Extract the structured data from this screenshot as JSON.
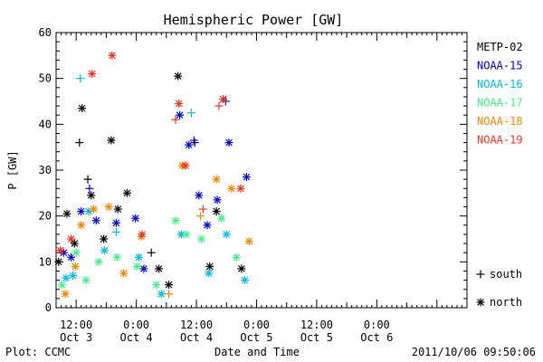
{
  "chart_data": {
    "type": "scatter",
    "title": "Hemispheric Power [GW]",
    "xlabel": "Date and Time",
    "ylabel": "P [GW]",
    "ylim": [
      0,
      60
    ],
    "yticks": [
      0,
      10,
      20,
      30,
      40,
      50,
      60
    ],
    "xlim": [
      "2011-10-03T08:00",
      "2011-10-06T18:00"
    ],
    "xticks": [
      {
        "at": "2011-10-03T12:00",
        "time": "12:00",
        "date": "Oct 3"
      },
      {
        "at": "2011-10-04T00:00",
        "time": "0:00",
        "date": "Oct 4"
      },
      {
        "at": "2011-10-04T12:00",
        "time": "12:00",
        "date": "Oct 4"
      },
      {
        "at": "2011-10-05T00:00",
        "time": "0:00",
        "date": "Oct 5"
      },
      {
        "at": "2011-10-05T12:00",
        "time": "12:00",
        "date": "Oct 5"
      },
      {
        "at": "2011-10-06T00:00",
        "time": "0:00",
        "date": "Oct 6"
      }
    ],
    "grid": false,
    "legend_position": "right",
    "hemisphere_legend": [
      {
        "marker": "+",
        "label": "south"
      },
      {
        "marker": "*",
        "label": "north"
      }
    ],
    "series": [
      {
        "name": "METP-02",
        "color": "#000000",
        "points": [
          {
            "x": "2011-10-03T08:30",
            "y": 10,
            "m": "*"
          },
          {
            "x": "2011-10-03T10:10",
            "y": 20.5,
            "m": "*"
          },
          {
            "x": "2011-10-03T11:40",
            "y": 14,
            "m": "*"
          },
          {
            "x": "2011-10-03T12:40",
            "y": 36,
            "m": "+"
          },
          {
            "x": "2011-10-03T13:10",
            "y": 43.5,
            "m": "*"
          },
          {
            "x": "2011-10-03T14:20",
            "y": 28,
            "m": "+"
          },
          {
            "x": "2011-10-03T15:00",
            "y": 24.5,
            "m": "*"
          },
          {
            "x": "2011-10-03T17:30",
            "y": 15,
            "m": "*"
          },
          {
            "x": "2011-10-03T19:00",
            "y": 36.5,
            "m": "*"
          },
          {
            "x": "2011-10-03T20:20",
            "y": 21.5,
            "m": "*"
          },
          {
            "x": "2011-10-03T22:10",
            "y": 25,
            "m": "*"
          },
          {
            "x": "2011-10-04T03:00",
            "y": 12,
            "m": "+"
          },
          {
            "x": "2011-10-04T04:30",
            "y": 8.5,
            "m": "*"
          },
          {
            "x": "2011-10-04T06:30",
            "y": 5,
            "m": "*"
          },
          {
            "x": "2011-10-04T08:20",
            "y": 50.5,
            "m": "*"
          },
          {
            "x": "2011-10-04T11:40",
            "y": 36,
            "m": "+"
          },
          {
            "x": "2011-10-04T14:40",
            "y": 9,
            "m": "*"
          },
          {
            "x": "2011-10-04T16:00",
            "y": 21,
            "m": "*"
          },
          {
            "x": "2011-10-04T21:00",
            "y": 8.5,
            "m": "*"
          }
        ]
      },
      {
        "name": "NOAA-15",
        "color": "#0000cc",
        "points": [
          {
            "x": "2011-10-03T09:30",
            "y": 12,
            "m": "*"
          },
          {
            "x": "2011-10-03T11:00",
            "y": 11,
            "m": "*"
          },
          {
            "x": "2011-10-03T13:00",
            "y": 21,
            "m": "*"
          },
          {
            "x": "2011-10-03T14:40",
            "y": 26,
            "m": "+"
          },
          {
            "x": "2011-10-03T16:00",
            "y": 19,
            "m": "*"
          },
          {
            "x": "2011-10-03T20:00",
            "y": 18.5,
            "m": "*"
          },
          {
            "x": "2011-10-03T23:50",
            "y": 19.5,
            "m": "*"
          },
          {
            "x": "2011-10-04T01:30",
            "y": 8.5,
            "m": "*"
          },
          {
            "x": "2011-10-04T08:40",
            "y": 42,
            "m": "*"
          },
          {
            "x": "2011-10-04T10:30",
            "y": 35.5,
            "m": "*"
          },
          {
            "x": "2011-10-04T11:30",
            "y": 36.5,
            "m": "+"
          },
          {
            "x": "2011-10-04T12:30",
            "y": 24.5,
            "m": "*"
          },
          {
            "x": "2011-10-04T14:10",
            "y": 18,
            "m": "*"
          },
          {
            "x": "2011-10-04T16:10",
            "y": 23.5,
            "m": "*"
          },
          {
            "x": "2011-10-04T17:50",
            "y": 45,
            "m": "+"
          },
          {
            "x": "2011-10-04T18:30",
            "y": 36,
            "m": "*"
          },
          {
            "x": "2011-10-04T22:00",
            "y": 28.5,
            "m": "*"
          }
        ]
      },
      {
        "name": "NOAA-16",
        "color": "#00bbdd",
        "points": [
          {
            "x": "2011-10-03T10:00",
            "y": 6.5,
            "m": "*"
          },
          {
            "x": "2011-10-03T11:20",
            "y": 7,
            "m": "*"
          },
          {
            "x": "2011-10-03T12:50",
            "y": 50,
            "m": "+"
          },
          {
            "x": "2011-10-03T14:30",
            "y": 21,
            "m": "*"
          },
          {
            "x": "2011-10-03T17:40",
            "y": 12.5,
            "m": "*"
          },
          {
            "x": "2011-10-03T20:00",
            "y": 16.5,
            "m": "+"
          },
          {
            "x": "2011-10-04T00:30",
            "y": 11,
            "m": "*"
          },
          {
            "x": "2011-10-04T05:00",
            "y": 3,
            "m": "*"
          },
          {
            "x": "2011-10-04T09:00",
            "y": 16,
            "m": "*"
          },
          {
            "x": "2011-10-04T11:00",
            "y": 42.5,
            "m": "+"
          },
          {
            "x": "2011-10-04T14:30",
            "y": 7.5,
            "m": "*"
          },
          {
            "x": "2011-10-04T18:00",
            "y": 16,
            "m": "*"
          },
          {
            "x": "2011-10-04T21:40",
            "y": 6,
            "m": "*"
          }
        ]
      },
      {
        "name": "NOAA-17",
        "color": "#44ee88",
        "points": [
          {
            "x": "2011-10-03T09:10",
            "y": 5,
            "m": "*"
          },
          {
            "x": "2011-10-03T12:00",
            "y": 12,
            "m": "*"
          },
          {
            "x": "2011-10-03T14:00",
            "y": 6,
            "m": "*"
          },
          {
            "x": "2011-10-03T16:30",
            "y": 10,
            "m": "*"
          },
          {
            "x": "2011-10-03T20:10",
            "y": 11,
            "m": "*"
          },
          {
            "x": "2011-10-04T00:10",
            "y": 9,
            "m": "*"
          },
          {
            "x": "2011-10-04T04:00",
            "y": 5,
            "m": "*"
          },
          {
            "x": "2011-10-04T07:50",
            "y": 19,
            "m": "*"
          },
          {
            "x": "2011-10-04T10:00",
            "y": 16,
            "m": "*"
          },
          {
            "x": "2011-10-04T13:00",
            "y": 15,
            "m": "*"
          },
          {
            "x": "2011-10-04T17:00",
            "y": 19.5,
            "m": "*"
          },
          {
            "x": "2011-10-04T20:00",
            "y": 11,
            "m": "*"
          }
        ]
      },
      {
        "name": "NOAA-18",
        "color": "#ee8800",
        "points": [
          {
            "x": "2011-10-03T09:50",
            "y": 3,
            "m": "*"
          },
          {
            "x": "2011-10-03T11:50",
            "y": 9,
            "m": "*"
          },
          {
            "x": "2011-10-03T13:00",
            "y": 18,
            "m": "*"
          },
          {
            "x": "2011-10-03T15:30",
            "y": 21.5,
            "m": "*"
          },
          {
            "x": "2011-10-03T18:30",
            "y": 22,
            "m": "*"
          },
          {
            "x": "2011-10-03T21:30",
            "y": 7.5,
            "m": "*"
          },
          {
            "x": "2011-10-04T01:00",
            "y": 15.5,
            "m": "*"
          },
          {
            "x": "2011-10-04T06:30",
            "y": 3,
            "m": "+"
          },
          {
            "x": "2011-10-04T09:10",
            "y": 31,
            "m": "*"
          },
          {
            "x": "2011-10-04T12:50",
            "y": 20,
            "m": "+"
          },
          {
            "x": "2011-10-04T16:00",
            "y": 28,
            "m": "*"
          },
          {
            "x": "2011-10-04T19:00",
            "y": 26,
            "m": "*"
          },
          {
            "x": "2011-10-04T22:30",
            "y": 14.5,
            "m": "*"
          }
        ]
      },
      {
        "name": "NOAA-19",
        "color": "#ee3322",
        "points": [
          {
            "x": "2011-10-03T08:50",
            "y": 12.5,
            "m": "*"
          },
          {
            "x": "2011-10-03T11:00",
            "y": 15,
            "m": "*"
          },
          {
            "x": "2011-10-03T15:10",
            "y": 51,
            "m": "*"
          },
          {
            "x": "2011-10-03T19:10",
            "y": 55,
            "m": "*"
          },
          {
            "x": "2011-10-04T01:10",
            "y": 16,
            "m": "*"
          },
          {
            "x": "2011-10-04T07:50",
            "y": 41,
            "m": "+"
          },
          {
            "x": "2011-10-04T08:30",
            "y": 44.5,
            "m": "*"
          },
          {
            "x": "2011-10-04T09:50",
            "y": 31,
            "m": "*"
          },
          {
            "x": "2011-10-04T13:20",
            "y": 21.5,
            "m": "+"
          },
          {
            "x": "2011-10-04T16:30",
            "y": 44,
            "m": "+"
          },
          {
            "x": "2011-10-04T17:20",
            "y": 45.5,
            "m": "*"
          },
          {
            "x": "2011-10-04T20:50",
            "y": 26,
            "m": "*"
          }
        ]
      }
    ],
    "footer_left": "Plot: CCMC",
    "footer_right": "2011/10/06 09:50:06"
  }
}
